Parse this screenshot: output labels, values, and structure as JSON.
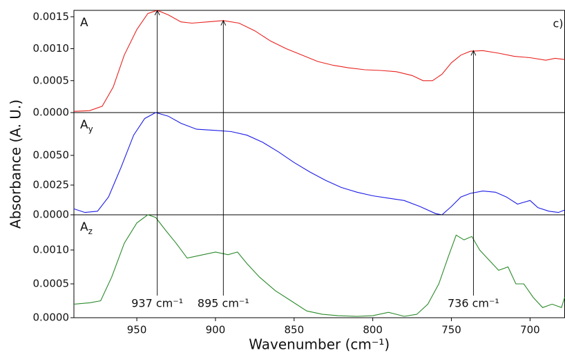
{
  "chart_data": [
    {
      "type": "line",
      "label": "A",
      "corner_label": "c)",
      "color": "#e8211e",
      "x": [
        990,
        980,
        972,
        965,
        958,
        950,
        943,
        937,
        930,
        922,
        915,
        905,
        895,
        885,
        875,
        865,
        855,
        845,
        835,
        825,
        815,
        805,
        795,
        785,
        775,
        768,
        762,
        756,
        750,
        744,
        738,
        730,
        720,
        710,
        700,
        690,
        684,
        678
      ],
      "values": [
        2e-05,
        3e-05,
        0.0001,
        0.0004,
        0.0009,
        0.0013,
        0.00155,
        0.0016,
        0.00153,
        0.00142,
        0.0014,
        0.00142,
        0.00144,
        0.0014,
        0.00128,
        0.00112,
        0.001,
        0.0009,
        0.0008,
        0.00074,
        0.0007,
        0.00067,
        0.00066,
        0.00064,
        0.00058,
        0.0005,
        0.0005,
        0.0006,
        0.00078,
        0.0009,
        0.00096,
        0.00097,
        0.00093,
        0.00088,
        0.00086,
        0.00082,
        0.00085,
        0.00083
      ],
      "xlim": [
        990,
        678
      ],
      "ylim": [
        0,
        0.0016
      ],
      "yticks": [
        {
          "value": 0,
          "label": "0.0000"
        },
        0.0005,
        {
          "value": 0.001,
          "label": "0.0010"
        },
        0.0015
      ]
    },
    {
      "type": "line",
      "label": "A",
      "label_sub": "y",
      "color": "#1a1ae6",
      "ylabel": "Absorbance  (A. U.)",
      "x": [
        990,
        983,
        975,
        968,
        960,
        952,
        945,
        938,
        930,
        922,
        912,
        900,
        890,
        880,
        870,
        860,
        850,
        840,
        830,
        820,
        810,
        800,
        790,
        780,
        770,
        760,
        756,
        750,
        744,
        738,
        730,
        722,
        715,
        708,
        700,
        695,
        688,
        682,
        678
      ],
      "values": [
        0.0005,
        0.0002,
        0.0003,
        0.0015,
        0.004,
        0.0067,
        0.0081,
        0.0086,
        0.0083,
        0.0077,
        0.0072,
        0.0071,
        0.007,
        0.0067,
        0.0061,
        0.0053,
        0.0044,
        0.0036,
        0.0029,
        0.0023,
        0.0019,
        0.0016,
        0.0014,
        0.0012,
        0.0007,
        0.0001,
        0,
        0.0007,
        0.0015,
        0.0018,
        0.002,
        0.0019,
        0.0015,
        0.0009,
        0.0012,
        0.0006,
        0.0003,
        0.0002,
        0.0004
      ],
      "xlim": [
        990,
        678
      ],
      "ylim": [
        0,
        0.0086
      ],
      "yticks": [
        {
          "value": 0,
          "label": "0.0000"
        },
        0.0025,
        {
          "value": 0.005,
          "label": "0.0050"
        }
      ]
    },
    {
      "type": "line",
      "label": "A",
      "label_sub": "z",
      "color": "#2a8a2a",
      "xlabel": "Wavenumber (cm⁻¹)",
      "x": [
        990,
        980,
        973,
        966,
        958,
        950,
        943,
        938,
        932,
        925,
        918,
        910,
        900,
        892,
        886,
        880,
        872,
        862,
        852,
        842,
        832,
        822,
        810,
        800,
        790,
        780,
        772,
        765,
        758,
        752,
        747,
        742,
        737,
        732,
        726,
        720,
        714,
        709,
        704,
        698,
        692,
        686,
        680,
        678
      ],
      "values": [
        0.0002,
        0.00022,
        0.00025,
        0.0006,
        0.0011,
        0.0014,
        0.00152,
        0.00148,
        0.0013,
        0.0011,
        0.00088,
        0.00092,
        0.00097,
        0.00093,
        0.00097,
        0.0008,
        0.0006,
        0.0004,
        0.00025,
        0.0001,
        5e-05,
        3e-05,
        2e-05,
        3e-05,
        8e-05,
        2e-05,
        5e-05,
        0.0002,
        0.0005,
        0.0009,
        0.00122,
        0.00115,
        0.0012,
        0.001,
        0.00085,
        0.0007,
        0.00075,
        0.0005,
        0.0005,
        0.0003,
        0.00015,
        0.0002,
        0.00015,
        0.0003
      ],
      "xlim": [
        990,
        678
      ],
      "ylim": [
        0,
        0.00152
      ],
      "xticks": [
        950,
        900,
        850,
        800,
        750,
        700
      ],
      "yticks": [
        {
          "value": 0,
          "label": "0.0000"
        },
        0.0005,
        {
          "value": 0.001,
          "label": "0.0010"
        }
      ],
      "arrows": [
        {
          "x": 937,
          "y": 0.0016,
          "label": "937 cm⁻¹"
        },
        {
          "x": 895,
          "y": 0.00144,
          "label": "895 cm⁻¹"
        },
        {
          "x": 736,
          "y": 0.00097,
          "label": "736 cm⁻¹"
        }
      ]
    }
  ]
}
